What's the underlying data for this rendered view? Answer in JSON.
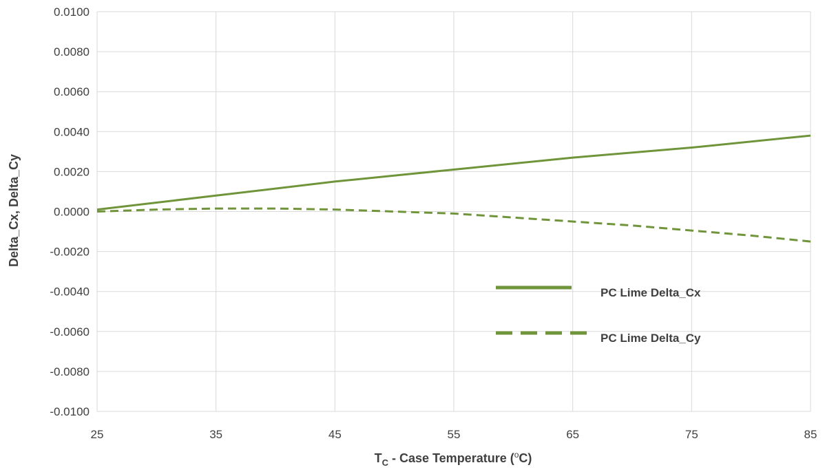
{
  "chart_data": {
    "type": "line",
    "xlabel": "T",
    "xlabel_sub": "C",
    "xlabel_mid": " - Case Temperature (",
    "xlabel_sup": "o",
    "xlabel_end": "C)",
    "ylabel": "Delta_Cx, Delta_Cy",
    "xlim": [
      25,
      85
    ],
    "ylim": [
      -0.01,
      0.01
    ],
    "x_ticks": [
      25,
      35,
      45,
      55,
      65,
      75,
      85
    ],
    "x_tick_labels": [
      "25",
      "35",
      "45",
      "55",
      "65",
      "75",
      "85"
    ],
    "y_ticks": [
      0.01,
      0.008,
      0.006,
      0.004,
      0.002,
      0.0,
      -0.002,
      -0.004,
      -0.006,
      -0.008,
      -0.01
    ],
    "y_tick_labels": [
      "0.0100",
      "0.0080",
      "0.0060",
      "0.0040",
      "0.0020",
      "0.0000",
      "-0.0020",
      "-0.0040",
      "-0.0060",
      "-0.0080",
      "-0.0100"
    ],
    "grid": true,
    "legend_position": "right-middle",
    "series": [
      {
        "name": "PC Lime Delta_Cx",
        "style": "solid",
        "color": "#70943a",
        "x": [
          25,
          35,
          45,
          55,
          65,
          75,
          85
        ],
        "y": [
          0.0001,
          0.0008,
          0.0015,
          0.0021,
          0.0027,
          0.0032,
          0.0038
        ]
      },
      {
        "name": "PC Lime Delta_Cy",
        "style": "dashed",
        "color": "#70943a",
        "x": [
          25,
          30,
          35,
          40,
          45,
          50,
          55,
          60,
          65,
          70,
          75,
          80,
          85
        ],
        "y": [
          0.0,
          0.0001,
          0.00015,
          0.00015,
          0.0001,
          0.0,
          -0.0001,
          -0.0003,
          -0.0005,
          -0.0007,
          -0.00095,
          -0.0012,
          -0.0015
        ]
      }
    ]
  }
}
